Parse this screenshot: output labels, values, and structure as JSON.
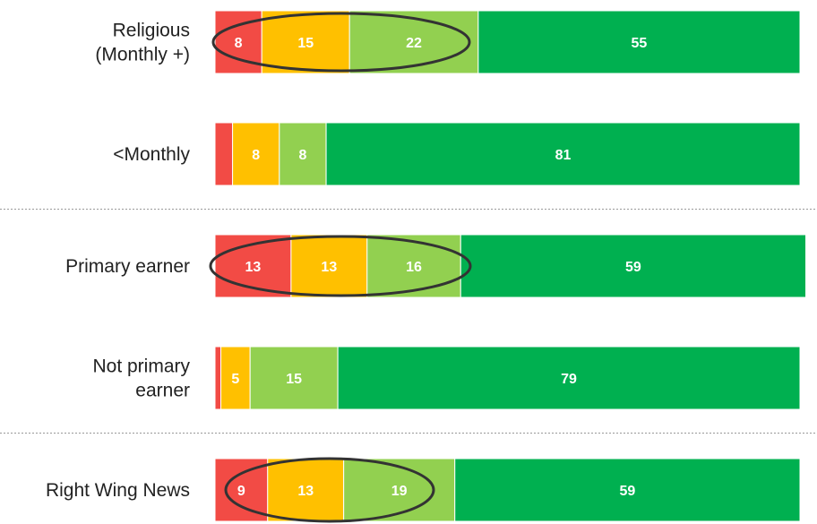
{
  "chart_data": {
    "type": "bar",
    "orientation": "horizontal",
    "stacked": true,
    "categories": [
      "Religious\n(Monthly +)",
      "<Monthly",
      "Primary earner",
      "Not primary\nearner",
      "Right Wing News"
    ],
    "xlim": [
      0,
      100
    ],
    "series": [
      {
        "color": "#f24b45",
        "values": [
          8,
          3,
          13,
          1,
          9
        ],
        "value_labels": [
          "8",
          null,
          "13",
          null,
          "9"
        ]
      },
      {
        "color": "#ffc000",
        "values": [
          15,
          8,
          13,
          5,
          13
        ]
      },
      {
        "color": "#92d050",
        "values": [
          22,
          8,
          16,
          15,
          19
        ]
      },
      {
        "color": "#00b050",
        "values": [
          55,
          81,
          59,
          79,
          59
        ]
      }
    ]
  }
}
